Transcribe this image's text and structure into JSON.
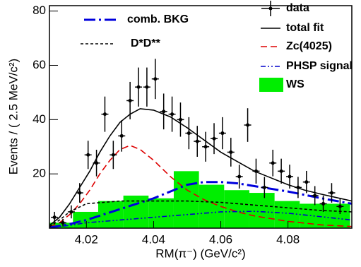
{
  "chart_data": {
    "type": "scatter",
    "xlabel": "RM(π⁻) (GeV/c²)",
    "ylabel": "Events / ( 2.5 MeV/c²)",
    "xlim": [
      4.009,
      4.099
    ],
    "ylim": [
      0,
      82
    ],
    "xticks": [
      4.02,
      4.04,
      4.06,
      4.08
    ],
    "yticks": [
      20,
      40,
      60,
      80
    ],
    "series": [
      {
        "name": "data",
        "kind": "points",
        "color": "#000000",
        "x": [
          4.0105,
          4.013,
          4.0155,
          4.018,
          4.0205,
          4.023,
          4.0255,
          4.028,
          4.0305,
          4.033,
          4.0355,
          4.038,
          4.0405,
          4.043,
          4.0455,
          4.048,
          4.0505,
          4.053,
          4.0555,
          4.058,
          4.0605,
          4.063,
          4.0655,
          4.068,
          4.0705,
          4.073,
          4.0755,
          4.078,
          4.0805,
          4.083,
          4.0855,
          4.088,
          4.0905,
          4.093,
          4.0955
        ],
        "values": [
          4,
          2,
          6,
          13,
          27,
          24,
          42,
          27,
          34,
          47,
          52,
          52,
          55,
          43,
          42,
          40,
          35,
          32,
          30,
          33,
          35,
          28,
          19,
          38,
          21,
          15,
          24,
          21,
          19,
          15,
          17,
          12,
          9,
          13,
          8
        ],
        "errors": [
          2,
          1.4,
          2.4,
          3.6,
          5.2,
          4.9,
          6.5,
          5.2,
          5.8,
          6.9,
          7.2,
          7.2,
          7.4,
          6.6,
          6.5,
          6.3,
          5.9,
          5.7,
          5.5,
          5.7,
          5.9,
          5.3,
          4.4,
          6.2,
          4.6,
          3.9,
          4.9,
          4.6,
          4.4,
          3.9,
          4.1,
          3.5,
          3,
          3.6,
          2.8
        ]
      },
      {
        "name": "total fit",
        "kind": "line",
        "color": "#000000",
        "dash": "",
        "x": [
          4.009,
          4.012,
          4.015,
          4.018,
          4.021,
          4.024,
          4.027,
          4.03,
          4.033,
          4.036,
          4.04,
          4.045,
          4.05,
          4.055,
          4.06,
          4.065,
          4.07,
          4.075,
          4.08,
          4.085,
          4.09,
          4.099
        ],
        "values": [
          1,
          4,
          9,
          15,
          21,
          28,
          34,
          39,
          42,
          44,
          43.5,
          41,
          37,
          32.5,
          28,
          24.5,
          21,
          18.5,
          16,
          14,
          12.5,
          10
        ]
      },
      {
        "name": "Zc(4025)",
        "kind": "line",
        "color": "#dd0000",
        "dash": "9 5",
        "x": [
          4.009,
          4.012,
          4.015,
          4.018,
          4.021,
          4.024,
          4.027,
          4.03,
          4.033,
          4.036,
          4.04,
          4.045,
          4.05,
          4.055,
          4.06,
          4.065,
          4.07,
          4.08,
          4.09,
          4.099
        ],
        "values": [
          0.5,
          2,
          5,
          9,
          14,
          20,
          25,
          29,
          30.5,
          29,
          25,
          19,
          14,
          10.5,
          8,
          6,
          4.5,
          2.5,
          1.2,
          0.6
        ]
      },
      {
        "name": "PHSP signal",
        "kind": "line",
        "color": "#0000cc",
        "dash": "7 3 2 3 2 3",
        "x": [
          4.009,
          4.015,
          4.02,
          4.03,
          4.04,
          4.05,
          4.06,
          4.07,
          4.08,
          4.09,
          4.099
        ],
        "values": [
          0.2,
          1,
          2,
          3,
          4,
          5,
          6,
          6.2,
          5.5,
          4.2,
          3
        ]
      },
      {
        "name": "WS",
        "kind": "hist",
        "color": "#00ee00",
        "bins": [
          4.0085,
          4.016,
          4.0235,
          4.031,
          4.0385,
          4.046,
          4.0535,
          4.061,
          4.0685,
          4.076,
          4.0835,
          4.091,
          4.0985
        ],
        "values": [
          2,
          6,
          10,
          12,
          11,
          21,
          16,
          14,
          13,
          10,
          9,
          9
        ]
      },
      {
        "name": "comb. BKG",
        "kind": "line",
        "color": "#0000dd",
        "dash": "16 5 3 5",
        "x": [
          4.009,
          4.015,
          4.02,
          4.025,
          4.03,
          4.035,
          4.04,
          4.045,
          4.05,
          4.055,
          4.06,
          4.065,
          4.07,
          4.08,
          4.09,
          4.099
        ],
        "values": [
          0.2,
          1.5,
          3,
          5,
          7,
          9,
          11,
          13.5,
          16,
          17,
          17,
          16.5,
          15.5,
          13.5,
          11,
          9
        ]
      },
      {
        "name": "D*D**",
        "kind": "line",
        "color": "#000000",
        "dash": "4 3",
        "x": [
          4.009,
          4.012,
          4.015,
          4.02,
          4.03,
          4.04,
          4.05,
          4.06,
          4.07,
          4.08,
          4.09,
          4.099
        ],
        "values": [
          0.5,
          3,
          6,
          9,
          10,
          10,
          10,
          9.5,
          8.5,
          7.5,
          6.5,
          6
        ]
      }
    ]
  }
}
